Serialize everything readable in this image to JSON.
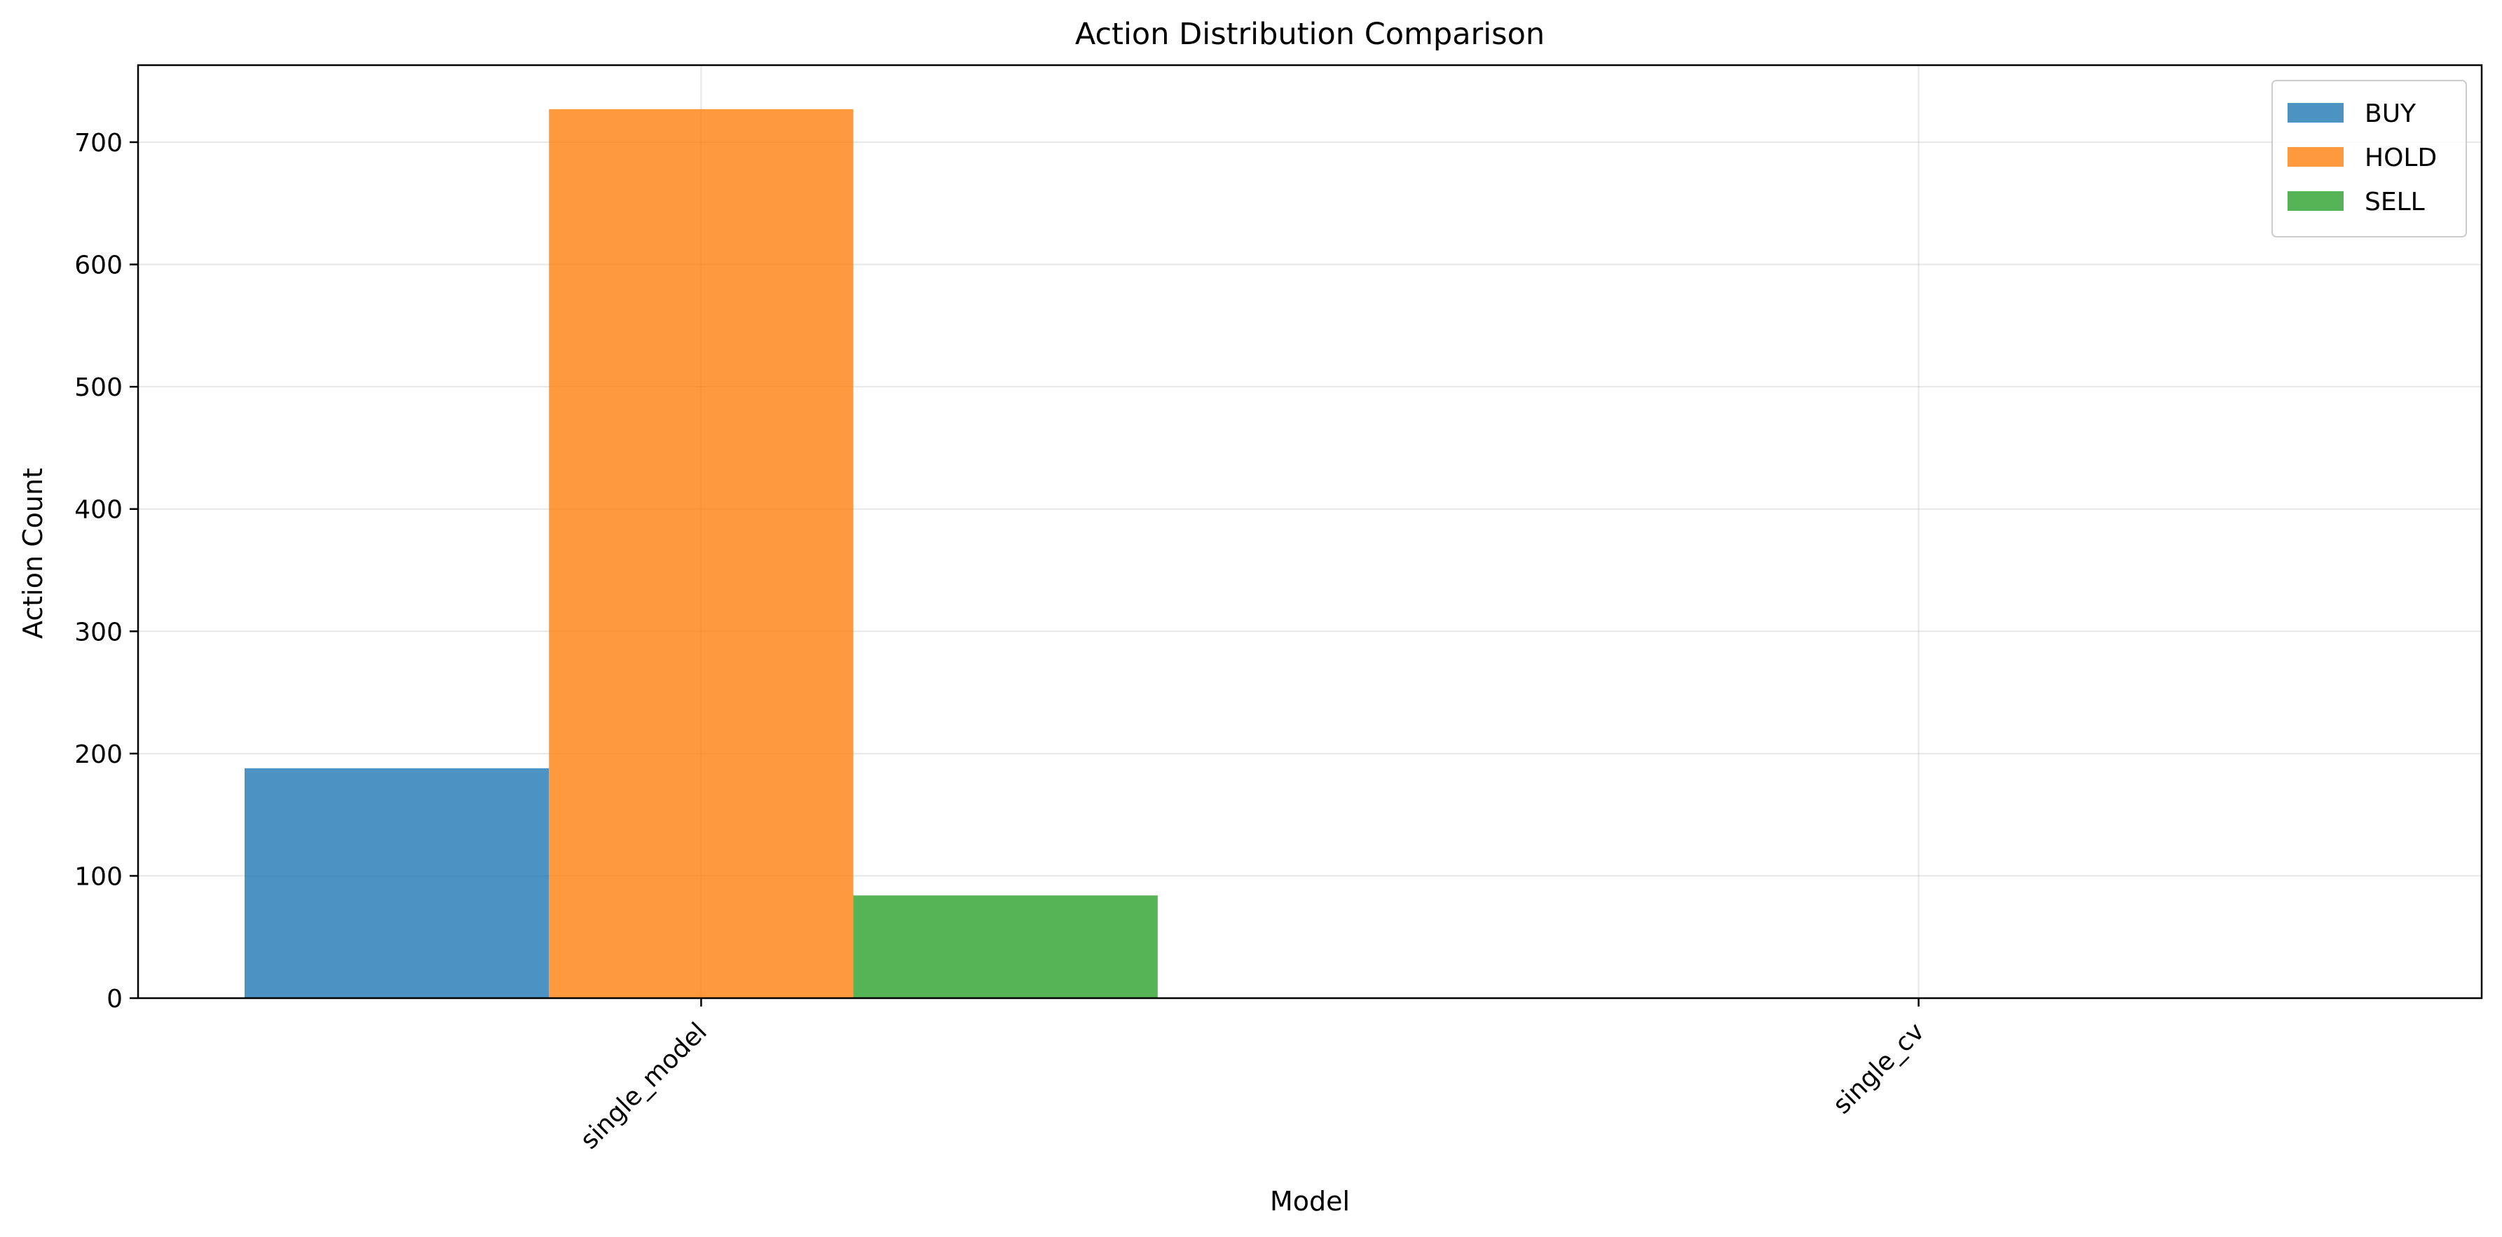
{
  "chart_data": {
    "type": "bar",
    "title": "Action Distribution Comparison",
    "xlabel": "Model",
    "ylabel": "Action Count",
    "categories": [
      "single_model",
      "single_cv"
    ],
    "series": [
      {
        "name": "BUY",
        "color": "#1f77b4",
        "values": [
          188,
          0
        ]
      },
      {
        "name": "HOLD",
        "color": "#ff7f0e",
        "values": [
          727,
          0
        ]
      },
      {
        "name": "SELL",
        "color": "#2ca02c",
        "values": [
          84,
          0
        ]
      }
    ],
    "ylim": [
      0,
      763
    ],
    "yticks": [
      0,
      100,
      200,
      300,
      400,
      500,
      600,
      700
    ],
    "grid": true,
    "legend_position": "top-right",
    "bar_opacity": 0.8,
    "xtick_rotation_degrees": 45
  }
}
